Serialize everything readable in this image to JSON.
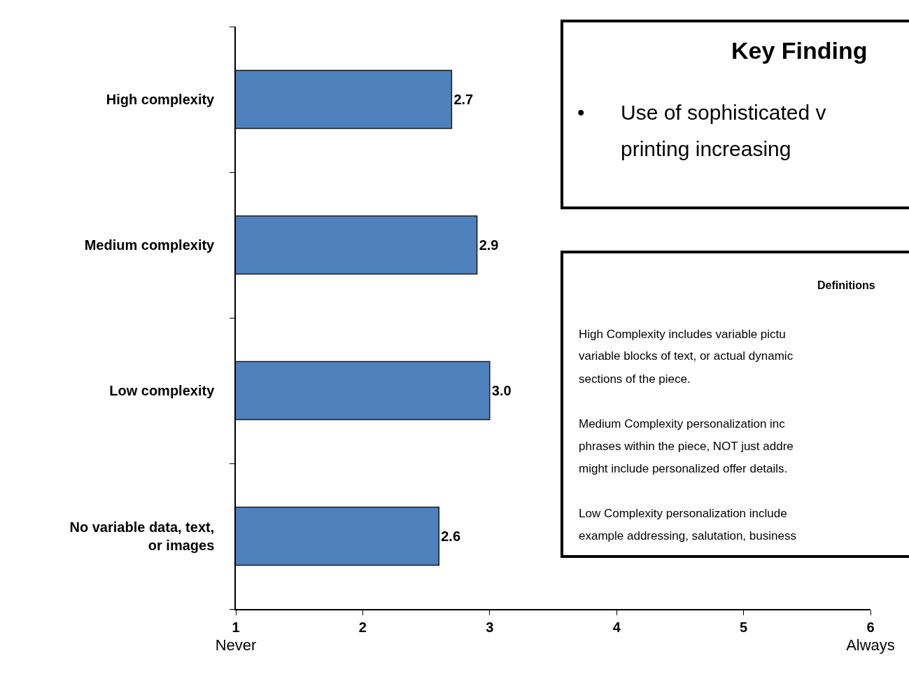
{
  "chart_data": {
    "type": "bar",
    "orientation": "horizontal",
    "categories": [
      "High complexity",
      "Medium complexity",
      "Low complexity",
      "No variable data, text,\nor images"
    ],
    "values": [
      2.7,
      2.9,
      3.0,
      2.6
    ],
    "value_labels": [
      "2.7",
      "2.9",
      "3.0",
      "2.6"
    ],
    "color": "#4f81bd",
    "xlim": [
      1,
      6
    ],
    "xticks": [
      {
        "value": 1,
        "label": "1\nNever"
      },
      2,
      3,
      4,
      5,
      {
        "value": 6,
        "label": "6\nAlways"
      }
    ],
    "grid": false,
    "annotations": [
      "Key Finding",
      "•",
      "Use of sophisticated v",
      "printing increasing",
      "Definitions",
      "High Complexity includes variable pictu",
      "variable blocks of text, or actual dynamic",
      "sections of the piece.",
      "Medium Complexity personalization inc",
      "phrases within the piece, NOT just addre",
      "might include personalized offer details.",
      "Low Complexity personalization include",
      "example addressing, salutation, business"
    ]
  }
}
